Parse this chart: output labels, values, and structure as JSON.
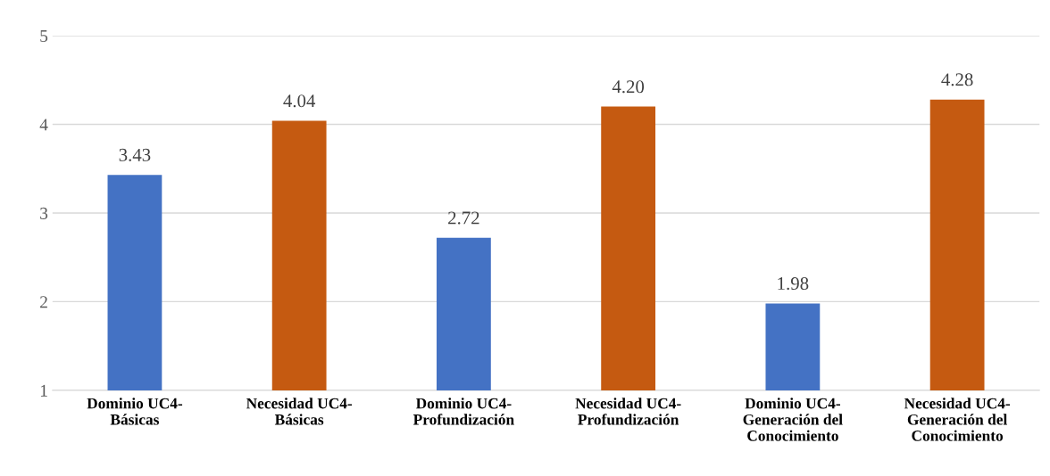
{
  "chart_data": {
    "type": "bar",
    "categories": [
      "Dominio UC4-\nBásicas",
      "Necesidad UC4-\nBásicas",
      "Dominio UC4-\nProfundización",
      "Necesidad UC4-\nProfundización",
      "Dominio UC4-\nGeneración del\nConocimiento",
      "Necesidad UC4-\nGeneración del\nConocimiento"
    ],
    "values": [
      3.43,
      4.04,
      2.72,
      4.2,
      1.98,
      4.28
    ],
    "value_labels": [
      "3.43",
      "4.04",
      "2.72",
      "4.20",
      "1.98",
      "4.28"
    ],
    "colors": [
      "#4472c4",
      "#c55a11",
      "#4472c4",
      "#c55a11",
      "#4472c4",
      "#c55a11"
    ],
    "ylim": [
      1,
      5
    ],
    "yticks": [
      1,
      2,
      3,
      4,
      5
    ],
    "grid": "y"
  }
}
